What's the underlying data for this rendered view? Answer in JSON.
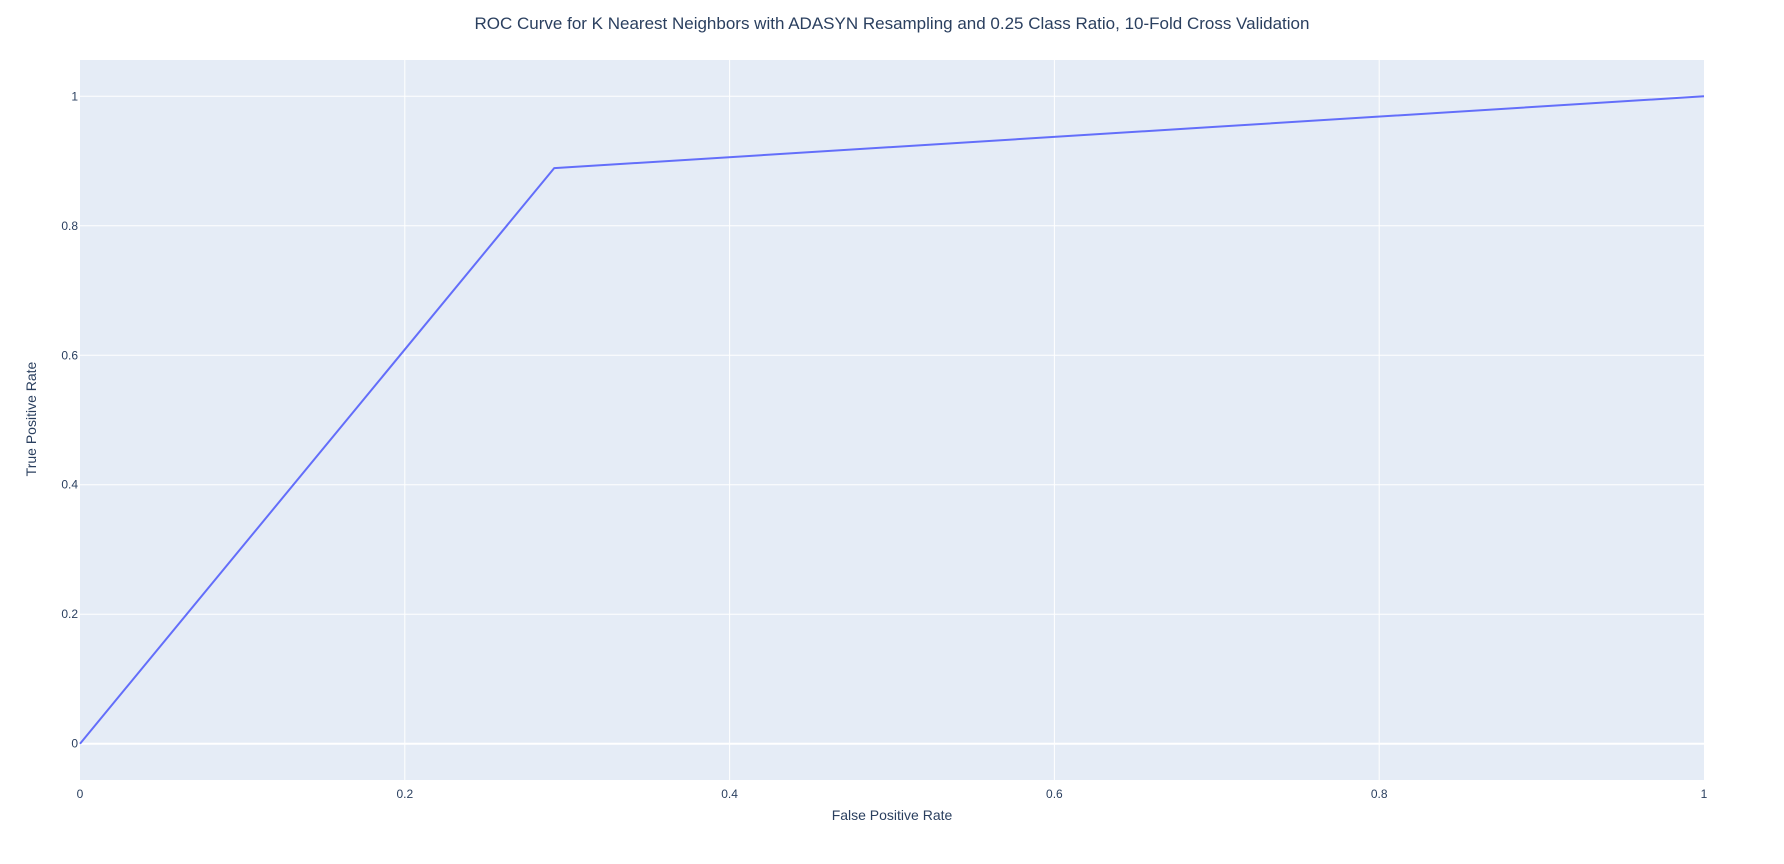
{
  "chart_data": {
    "type": "line",
    "title": "ROC Curve for K Nearest Neighbors with ADASYN Resampling and 0.25 Class Ratio, 10-Fold Cross Validation",
    "xlabel": "False Positive Rate",
    "ylabel": "True Positive Rate",
    "xlim": [
      0,
      1
    ],
    "ylim": [
      -0.056,
      1.056
    ],
    "x_ticks": [
      0,
      0.2,
      0.4,
      0.6,
      0.8,
      1
    ],
    "x_tick_labels": [
      "0",
      "0.2",
      "0.4",
      "0.6",
      "0.8",
      "1"
    ],
    "y_ticks": [
      0,
      0.2,
      0.4,
      0.6,
      0.8,
      1
    ],
    "y_tick_labels": [
      "0",
      "0.2",
      "0.4",
      "0.6",
      "0.8",
      "1"
    ],
    "grid": true,
    "series": [
      {
        "x": [
          0,
          0.292,
          1
        ],
        "y": [
          0,
          0.889,
          1
        ],
        "color": "#636efa"
      }
    ],
    "colors": {
      "plot_background": "#e5ecf6",
      "grid": "#ffffff",
      "text": "#2a3f5f",
      "line": "#636efa"
    }
  }
}
